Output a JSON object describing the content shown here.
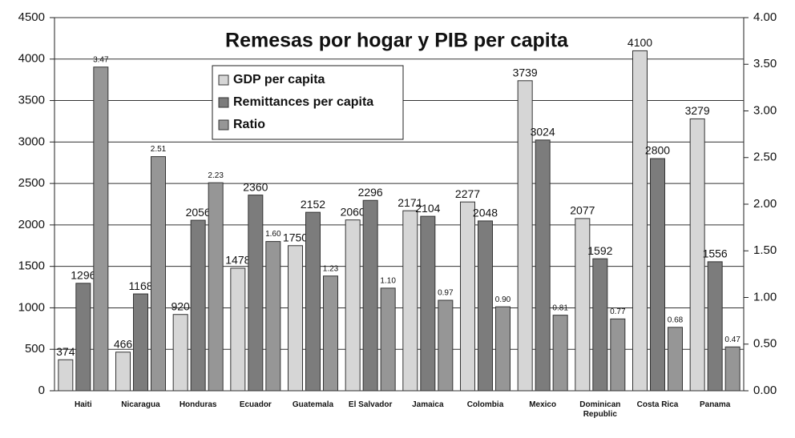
{
  "chart_data": {
    "type": "bar",
    "title": "Remesas por hogar y PIB per capita",
    "categories": [
      "Haiti",
      "Nicaragua",
      "Honduras",
      "Ecuador",
      "Guatemala",
      "El Salvador",
      "Jamaica",
      "Colombia",
      "Mexico",
      "Dominican Republic",
      "Costa Rica",
      "Panama"
    ],
    "series": [
      {
        "name": "GDP per capita",
        "color": "#d6d6d6",
        "values": [
          374,
          466,
          920,
          1478,
          1750,
          2060,
          2171,
          2277,
          3739,
          2077,
          4100,
          3279
        ]
      },
      {
        "name": "Remittances per capita",
        "color": "#7c7c7c",
        "values": [
          1296,
          1168,
          2056,
          2360,
          2152,
          2296,
          2104,
          2048,
          3024,
          1592,
          2800,
          1556
        ]
      },
      {
        "name": "Ratio",
        "color": "#969696",
        "axis": "y2",
        "values": [
          3.47,
          2.51,
          2.23,
          1.6,
          1.23,
          1.1,
          0.97,
          0.9,
          0.81,
          0.77,
          0.68,
          0.47
        ],
        "value_labels": [
          "3.47",
          "2.51",
          "2.23",
          "1.60",
          "1.23",
          "1.10",
          "0.97",
          "0.90",
          "0.81",
          "0.77",
          "0.68",
          "0.47"
        ]
      }
    ],
    "ylim": [
      0,
      4500
    ],
    "yticks": [
      0,
      500,
      1000,
      1500,
      2000,
      2500,
      3000,
      3500,
      4000,
      4500
    ],
    "y2lim": [
      0,
      4
    ],
    "y2ticks": [
      {
        "value": 0,
        "label": "0.00"
      },
      {
        "value": 0.5,
        "label": "0.50"
      },
      {
        "value": 1,
        "label": "1.00"
      },
      {
        "value": 1.5,
        "label": "1.50"
      },
      {
        "value": 2,
        "label": "2.00"
      },
      {
        "value": 2.5,
        "label": "2.50"
      },
      {
        "value": 3,
        "label": "3.00"
      },
      {
        "value": 3.5,
        "label": "3.50"
      },
      {
        "value": 4,
        "label": "4.00"
      }
    ],
    "grid": true,
    "legend": "top-left"
  }
}
